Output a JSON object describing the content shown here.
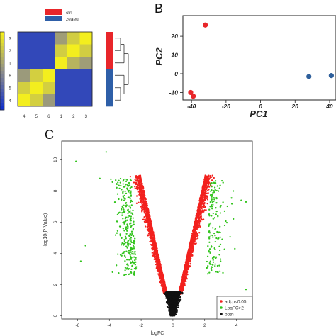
{
  "panels": {
    "A": {
      "label": ""
    },
    "B": {
      "label": "B"
    },
    "C": {
      "label": "C"
    }
  },
  "colors": {
    "ctrl": "#e8262a",
    "zeaeu": "#2e5fa8",
    "heat_high": "#f3ee1e",
    "heat_mid": "#8f8e88",
    "heat_low": "#1432c8",
    "pca_ctrl": "#e8262a",
    "pca_zeaeu": "#2e5f9b",
    "volcano_sig": "#f2211e",
    "volcano_logfc": "#33c41e",
    "volcano_ns": "#111111"
  },
  "chart_data": [
    {
      "type": "heatmap",
      "title": "",
      "legend": [
        {
          "name": "ctrl",
          "color": "#e8262a"
        },
        {
          "name": "zeaeu",
          "color": "#2e5fa8"
        }
      ],
      "row_labels": [
        "3",
        "2",
        "1",
        "6",
        "5",
        "4"
      ],
      "col_labels": [
        "4",
        "5",
        "6",
        "1",
        "2",
        "3"
      ],
      "scale_ticks": [
        "",
        "",
        "",
        "",
        "",
        "",
        ""
      ],
      "values": [
        [
          0.12,
          0.12,
          0.12,
          0.58,
          0.83,
          1.0
        ],
        [
          0.12,
          0.12,
          0.12,
          0.83,
          1.0,
          0.83
        ],
        [
          0.12,
          0.12,
          0.12,
          1.0,
          0.7,
          0.58
        ],
        [
          0.56,
          0.84,
          1.0,
          0.12,
          0.12,
          0.12
        ],
        [
          0.84,
          1.0,
          0.84,
          0.12,
          0.12,
          0.12
        ],
        [
          1.0,
          0.84,
          0.56,
          0.12,
          0.12,
          0.12
        ]
      ],
      "row_groups": [
        "ctrl",
        "ctrl",
        "ctrl",
        "zeaeu",
        "zeaeu",
        "zeaeu"
      ]
    },
    {
      "type": "scatter",
      "title": "",
      "xlabel": "PC1",
      "ylabel": "PC2",
      "xlim": [
        -45,
        45
      ],
      "ylim": [
        -14,
        31
      ],
      "xticks": [
        -40,
        -20,
        0,
        20,
        40
      ],
      "yticks": [
        -10,
        0,
        10,
        20
      ],
      "xtick_labels": [
        "-40",
        "-20",
        "0",
        "20",
        "40"
      ],
      "ytick_labels": [
        "-10",
        "0",
        "10",
        "20"
      ],
      "series": [
        {
          "name": "ctrl",
          "points": [
            [
              -32,
              26
            ],
            [
              -40.5,
              -10
            ],
            [
              -39,
              -12
            ]
          ]
        },
        {
          "name": "zeaeu",
          "points": [
            [
              28,
              -1.5
            ],
            [
              41,
              -1
            ]
          ]
        }
      ]
    },
    {
      "type": "scatter",
      "title": "",
      "xlabel": "logFC",
      "ylabel": "-log10(P-Value)",
      "xlim": [
        -7,
        5
      ],
      "ylim": [
        -0.2,
        11.2
      ],
      "xticks": [
        -6,
        -4,
        -2,
        0,
        2,
        4
      ],
      "yticks": [
        0,
        2,
        4,
        6,
        8,
        10
      ],
      "xtick_labels": [
        "-6",
        "-4",
        "-2",
        "0",
        "2",
        "4"
      ],
      "ytick_labels": [
        "0",
        "2",
        "4",
        "6",
        "8",
        "10"
      ],
      "legend_position": "bottom-right",
      "series": [
        {
          "name": "adj.p<0.05",
          "color": "#f2211e"
        },
        {
          "name": "LogFC>2",
          "color": "#33c41e"
        },
        {
          "name": "both",
          "color": "#111111"
        }
      ],
      "highlight_points": [
        [
          -6.1,
          9.9
        ],
        [
          -4.2,
          10.5
        ],
        [
          -5.5,
          4.5
        ],
        [
          -5.8,
          3.5
        ],
        [
          -3.8,
          2.8
        ],
        [
          -3.2,
          6.6
        ],
        [
          -4.6,
          8.8
        ],
        [
          4.3,
          7.4
        ],
        [
          3.8,
          8.0
        ],
        [
          4.6,
          7.3
        ],
        [
          4.6,
          1.7
        ],
        [
          3.9,
          4.3
        ],
        [
          3.1,
          4.9
        ],
        [
          3.0,
          3.5
        ],
        [
          -2.9,
          3.0
        ]
      ],
      "cloud": {
        "ns_count": 1400,
        "sig_count": 2800,
        "fc_count": 420,
        "seed": 7
      }
    }
  ]
}
